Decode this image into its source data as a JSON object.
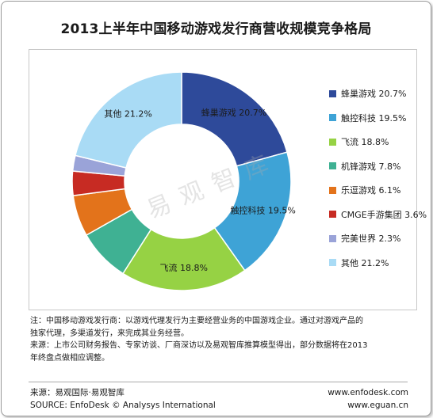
{
  "header": {
    "title": "2013上半年中国移动游戏发行商营收规模竞争格局"
  },
  "chart_data": {
    "type": "pie",
    "donut": true,
    "categories": [
      "蜂巢游戏",
      "触控科技",
      "飞流",
      "机锋游戏",
      "乐逗游戏",
      "CMGE手游集团",
      "完美世界",
      "其他"
    ],
    "values": [
      20.7,
      19.5,
      18.8,
      7.8,
      6.1,
      3.6,
      2.3,
      21.2
    ],
    "value_labels": [
      "20.7%",
      "19.5%",
      "18.8%",
      "7.8%",
      "6.1%",
      "3.6%",
      "2.3%",
      "21.2%"
    ],
    "colors": [
      "#2e4a9a",
      "#3ea3d6",
      "#96d244",
      "#3fb193",
      "#e3731b",
      "#c72b23",
      "#9aa3d8",
      "#a9dbf5"
    ],
    "slice_labels": [
      "蜂巢游戏 20.7%",
      "触控科技 19.5%",
      "飞流 18.8%",
      "",
      "",
      "",
      "",
      "其他 21.2%"
    ],
    "legend_labels": [
      "蜂巢游戏 20.7%",
      "触控科技 19.5%",
      "飞流 18.8%",
      "机锋游戏 7.8%",
      "乐逗游戏 6.1%",
      "CMGE手游集团 3.6%",
      "完美世界 2.3%",
      "其他 21.2%"
    ],
    "legend_position": "right",
    "watermark": "易观智库"
  },
  "notes": {
    "line1": "注：中国移动游戏发行商：以游戏代理发行为主要经营业务的中国游戏企业。通过对游戏产品的",
    "line2": "独家代理，多渠道发行，来完成其业务经营。",
    "line3": "来源：上市公司财务报告、专家访谈、厂商深访以及易观智库推算模型得出，部分数据将在2013",
    "line4": "年终盘点做相应调整。"
  },
  "footer": {
    "source_cn": "来源：易观国际·易观智库",
    "source_en": "SOURCE: EnfoDesk © Analysys International",
    "url1": "www.enfodesk.com",
    "url2": "www.eguan.cn"
  }
}
